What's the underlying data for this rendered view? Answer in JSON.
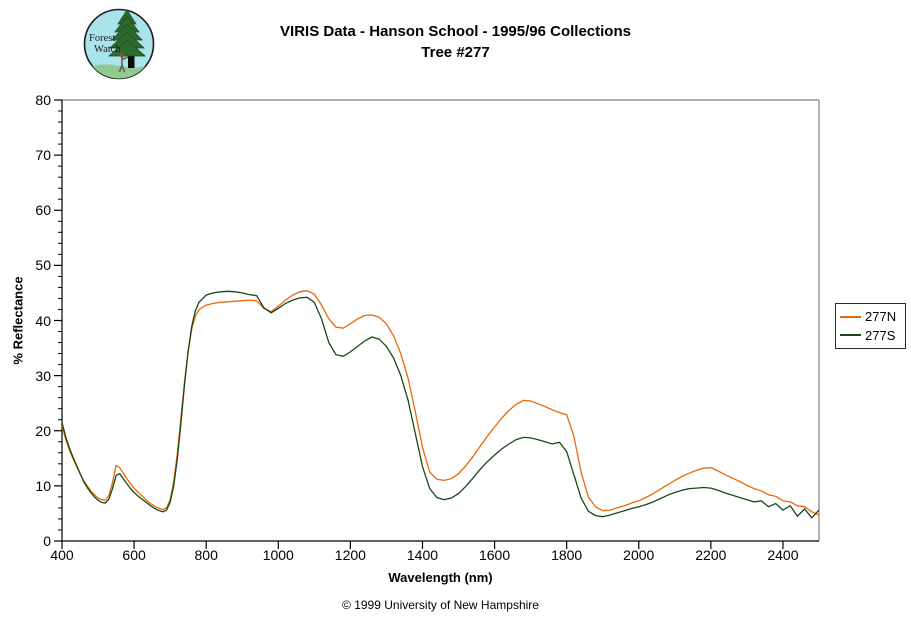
{
  "header": {
    "title_line1": "VIRIS Data - Hanson School - 1995/96 Collections",
    "title_line2": "Tree #277",
    "logo_text_line1": "Forest",
    "logo_text_line2": "Watch"
  },
  "footer": {
    "copyright": "© 1999 University of New Hampshire"
  },
  "chart_data": {
    "type": "line",
    "title": "VIRIS Data - Hanson School - 1995/96 Collections",
    "subtitle": "Tree #277",
    "xlabel": "Wavelength (nm)",
    "ylabel": "% Reflectance",
    "xlim": [
      400,
      2500
    ],
    "ylim": [
      0,
      80
    ],
    "x_ticks": [
      400,
      600,
      800,
      1000,
      1200,
      1400,
      1600,
      1800,
      2000,
      2200,
      2400
    ],
    "y_ticks": [
      0,
      10,
      20,
      30,
      40,
      50,
      60,
      70,
      80
    ],
    "y_minor_step": 2,
    "grid": false,
    "legend_position": "right-outside",
    "colors": {
      "frame_gray": "#808080",
      "axis_black": "#000000"
    },
    "x": [
      400,
      410,
      420,
      430,
      440,
      450,
      460,
      470,
      480,
      490,
      500,
      510,
      520,
      530,
      540,
      550,
      560,
      570,
      580,
      590,
      600,
      610,
      620,
      630,
      640,
      650,
      660,
      670,
      680,
      690,
      700,
      710,
      720,
      730,
      740,
      750,
      760,
      770,
      780,
      800,
      820,
      840,
      860,
      880,
      900,
      920,
      940,
      960,
      980,
      1000,
      1020,
      1040,
      1060,
      1080,
      1100,
      1120,
      1140,
      1160,
      1180,
      1200,
      1220,
      1240,
      1260,
      1280,
      1300,
      1320,
      1340,
      1360,
      1380,
      1400,
      1420,
      1440,
      1460,
      1480,
      1500,
      1520,
      1540,
      1560,
      1580,
      1600,
      1620,
      1640,
      1660,
      1680,
      1700,
      1720,
      1740,
      1760,
      1780,
      1800,
      1820,
      1840,
      1860,
      1880,
      1900,
      1920,
      1940,
      1960,
      1980,
      2000,
      2020,
      2040,
      2060,
      2080,
      2100,
      2120,
      2140,
      2160,
      2180,
      2200,
      2220,
      2240,
      2260,
      2280,
      2300,
      2320,
      2340,
      2360,
      2380,
      2400,
      2420,
      2440,
      2460,
      2480,
      2500
    ],
    "series": [
      {
        "name": "277N",
        "color": "#E8690B",
        "values": [
          21.0,
          18.5,
          16.6,
          15.0,
          13.6,
          12.2,
          11.0,
          10.0,
          9.1,
          8.4,
          7.8,
          7.5,
          7.4,
          8.3,
          10.6,
          13.7,
          13.3,
          12.3,
          11.3,
          10.4,
          9.6,
          8.9,
          8.3,
          7.7,
          7.1,
          6.6,
          6.2,
          5.9,
          5.7,
          6.0,
          7.5,
          10.8,
          16.0,
          22.5,
          29.0,
          34.5,
          38.5,
          40.8,
          42.0,
          42.8,
          43.1,
          43.3,
          43.4,
          43.5,
          43.6,
          43.7,
          43.6,
          42.2,
          41.6,
          42.6,
          43.7,
          44.6,
          45.2,
          45.4,
          44.8,
          42.8,
          40.3,
          38.8,
          38.6,
          39.4,
          40.3,
          40.9,
          41.0,
          40.6,
          39.4,
          37.2,
          34.0,
          29.5,
          23.5,
          17.0,
          12.5,
          11.2,
          11.0,
          11.3,
          12.2,
          13.6,
          15.3,
          17.2,
          19.0,
          20.7,
          22.3,
          23.7,
          24.8,
          25.5,
          25.4,
          24.9,
          24.4,
          23.8,
          23.3,
          22.9,
          19.0,
          12.5,
          8.0,
          6.2,
          5.5,
          5.6,
          6.0,
          6.4,
          6.9,
          7.3,
          7.9,
          8.6,
          9.4,
          10.2,
          11.0,
          11.7,
          12.3,
          12.8,
          13.2,
          13.3,
          12.7,
          12.0,
          11.4,
          10.8,
          10.1,
          9.5,
          9.1,
          8.4,
          8.1,
          7.3,
          7.1,
          6.4,
          6.2,
          5.3,
          4.7
        ]
      },
      {
        "name": "277S",
        "color": "#164916",
        "values": [
          21.5,
          19.0,
          17.0,
          15.3,
          13.8,
          12.3,
          10.8,
          9.7,
          8.8,
          8.0,
          7.4,
          7.0,
          6.9,
          7.6,
          9.5,
          11.9,
          12.2,
          11.3,
          10.4,
          9.5,
          8.8,
          8.2,
          7.7,
          7.2,
          6.7,
          6.2,
          5.8,
          5.5,
          5.3,
          5.6,
          7.0,
          10.0,
          15.0,
          21.5,
          28.5,
          34.5,
          39.0,
          41.8,
          43.3,
          44.6,
          45.0,
          45.2,
          45.3,
          45.2,
          45.0,
          44.7,
          44.5,
          42.3,
          41.4,
          42.2,
          43.1,
          43.7,
          44.1,
          44.2,
          43.3,
          40.3,
          36.0,
          33.8,
          33.5,
          34.3,
          35.3,
          36.3,
          37.0,
          36.6,
          35.3,
          33.2,
          30.0,
          25.5,
          19.5,
          13.5,
          9.5,
          7.9,
          7.5,
          7.8,
          8.6,
          9.9,
          11.4,
          13.0,
          14.4,
          15.6,
          16.7,
          17.6,
          18.4,
          18.8,
          18.7,
          18.4,
          18.0,
          17.6,
          17.9,
          16.2,
          12.0,
          7.8,
          5.4,
          4.6,
          4.4,
          4.7,
          5.1,
          5.5,
          5.9,
          6.2,
          6.6,
          7.1,
          7.7,
          8.3,
          8.8,
          9.2,
          9.5,
          9.6,
          9.7,
          9.6,
          9.2,
          8.7,
          8.3,
          7.9,
          7.5,
          7.1,
          7.3,
          6.2,
          6.8,
          5.6,
          6.4,
          4.5,
          5.8,
          4.2,
          5.6
        ]
      }
    ]
  }
}
